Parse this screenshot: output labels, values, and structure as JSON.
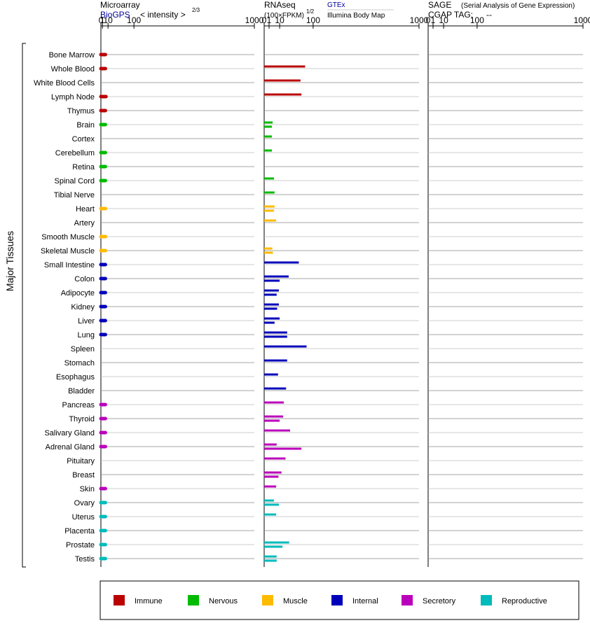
{
  "headers": {
    "microarray": {
      "title": "Microarray",
      "source": "BioGPS",
      "unit": "< intensity >",
      "exponent": "2/3"
    },
    "rnaseq": {
      "title": "RNAseq",
      "unit": "(100×FPKM)",
      "exponent": "1/2",
      "source_a": "GTEx",
      "source_b": "Illumina Body Map"
    },
    "sage": {
      "title": "SAGE",
      "subtitle": "(Serial Analysis of Gene Expression)",
      "tag_label": "CGAP TAG:",
      "tag_value": "--"
    }
  },
  "y_group_label": "Major Tissues",
  "colors": {
    "Immune": "#bb0000",
    "Nervous": "#00bb00",
    "Muscle": "#ffbb00",
    "Internal": "#0000bb",
    "Secretory": "#bb00bb",
    "Reproductive": "#00bbbb"
  },
  "legend": [
    "Immune",
    "Nervous",
    "Muscle",
    "Internal",
    "Secretory",
    "Reproductive"
  ],
  "chart_data": {
    "type": "bar",
    "axis_ticks": [
      "0",
      "1",
      "10",
      "100",
      "1000"
    ],
    "axis_scale": "power (microarray 2/3, RNAseq 1/2, SAGE 1/2)",
    "xlim": [
      0,
      1000
    ],
    "grid": true,
    "legend_position": "bottom",
    "tissues": [
      {
        "name": "Bone Marrow",
        "group": "Immune",
        "microarray": 5,
        "rnaseq": []
      },
      {
        "name": "Whole Blood",
        "group": "Immune",
        "microarray": 5,
        "rnaseq": [
          70
        ]
      },
      {
        "name": "White Blood Cells",
        "group": "Immune",
        "microarray": null,
        "rnaseq": [
          55
        ]
      },
      {
        "name": "Lymph Node",
        "group": "Immune",
        "microarray": 6,
        "rnaseq": [
          58
        ]
      },
      {
        "name": "Thymus",
        "group": "Immune",
        "microarray": 5,
        "rnaseq": []
      },
      {
        "name": "Brain",
        "group": "Nervous",
        "microarray": 5,
        "rnaseq": [
          3,
          2.5
        ]
      },
      {
        "name": "Cortex",
        "group": "Nervous",
        "microarray": null,
        "rnaseq": [
          2.5
        ]
      },
      {
        "name": "Cerebellum",
        "group": "Nervous",
        "microarray": 5,
        "rnaseq": [
          2.5
        ]
      },
      {
        "name": "Retina",
        "group": "Nervous",
        "microarray": 5,
        "rnaseq": []
      },
      {
        "name": "Spinal Cord",
        "group": "Nervous",
        "microarray": 5,
        "rnaseq": [
          4
        ]
      },
      {
        "name": "Tibial Nerve",
        "group": "Nervous",
        "microarray": null,
        "rnaseq": [
          4.5
        ]
      },
      {
        "name": "Heart",
        "group": "Muscle",
        "microarray": 5,
        "rnaseq": [
          4.5,
          4
        ]
      },
      {
        "name": "Artery",
        "group": "Muscle",
        "microarray": null,
        "rnaseq": [
          6
        ]
      },
      {
        "name": "Smooth Muscle",
        "group": "Muscle",
        "microarray": 5,
        "rnaseq": []
      },
      {
        "name": "Skeletal Muscle",
        "group": "Muscle",
        "microarray": 5,
        "rnaseq": [
          2.8,
          3.2
        ]
      },
      {
        "name": "Small Intestine",
        "group": "Internal",
        "microarray": 5,
        "rnaseq": [
          50
        ]
      },
      {
        "name": "Colon",
        "group": "Internal",
        "microarray": 5,
        "rnaseq": [
          25,
          10
        ]
      },
      {
        "name": "Adipocyte",
        "group": "Internal",
        "microarray": 5,
        "rnaseq": [
          9,
          6.5
        ]
      },
      {
        "name": "Kidney",
        "group": "Internal",
        "microarray": 5,
        "rnaseq": [
          9,
          7
        ]
      },
      {
        "name": "Liver",
        "group": "Internal",
        "microarray": 5,
        "rnaseq": [
          10,
          4.5
        ]
      },
      {
        "name": "Lung",
        "group": "Internal",
        "microarray": 5,
        "rnaseq": [
          22,
          22
        ]
      },
      {
        "name": "Spleen",
        "group": "Internal",
        "microarray": null,
        "rnaseq": [
          75
        ]
      },
      {
        "name": "Stomach",
        "group": "Internal",
        "microarray": null,
        "rnaseq": [
          22
        ]
      },
      {
        "name": "Esophagus",
        "group": "Internal",
        "microarray": null,
        "rnaseq": [
          8
        ]
      },
      {
        "name": "Bladder",
        "group": "Internal",
        "microarray": null,
        "rnaseq": [
          20
        ]
      },
      {
        "name": "Pancreas",
        "group": "Secretory",
        "microarray": 5,
        "rnaseq": [
          16
        ]
      },
      {
        "name": "Thyroid",
        "group": "Secretory",
        "microarray": 5,
        "rnaseq": [
          15,
          10
        ]
      },
      {
        "name": "Salivary Gland",
        "group": "Secretory",
        "microarray": 5,
        "rnaseq": [
          28
        ]
      },
      {
        "name": "Adrenal Gland",
        "group": "Secretory",
        "microarray": 5,
        "rnaseq": [
          6.5,
          58
        ]
      },
      {
        "name": "Pituitary",
        "group": "Secretory",
        "microarray": null,
        "rnaseq": [
          19
        ]
      },
      {
        "name": "Breast",
        "group": "Secretory",
        "microarray": null,
        "rnaseq": [
          12.5,
          8.5
        ]
      },
      {
        "name": "Skin",
        "group": "Secretory",
        "microarray": 5,
        "rnaseq": [
          6
        ]
      },
      {
        "name": "Ovary",
        "group": "Reproductive",
        "microarray": 5,
        "rnaseq": [
          4,
          9
        ]
      },
      {
        "name": "Uterus",
        "group": "Reproductive",
        "microarray": 5,
        "rnaseq": [
          6
        ]
      },
      {
        "name": "Placenta",
        "group": "Reproductive",
        "microarray": 5,
        "rnaseq": []
      },
      {
        "name": "Prostate",
        "group": "Reproductive",
        "microarray": 5,
        "rnaseq": [
          26,
          14
        ]
      },
      {
        "name": "Testis",
        "group": "Reproductive",
        "microarray": 5,
        "rnaseq": [
          6.5,
          6.5
        ]
      }
    ]
  }
}
